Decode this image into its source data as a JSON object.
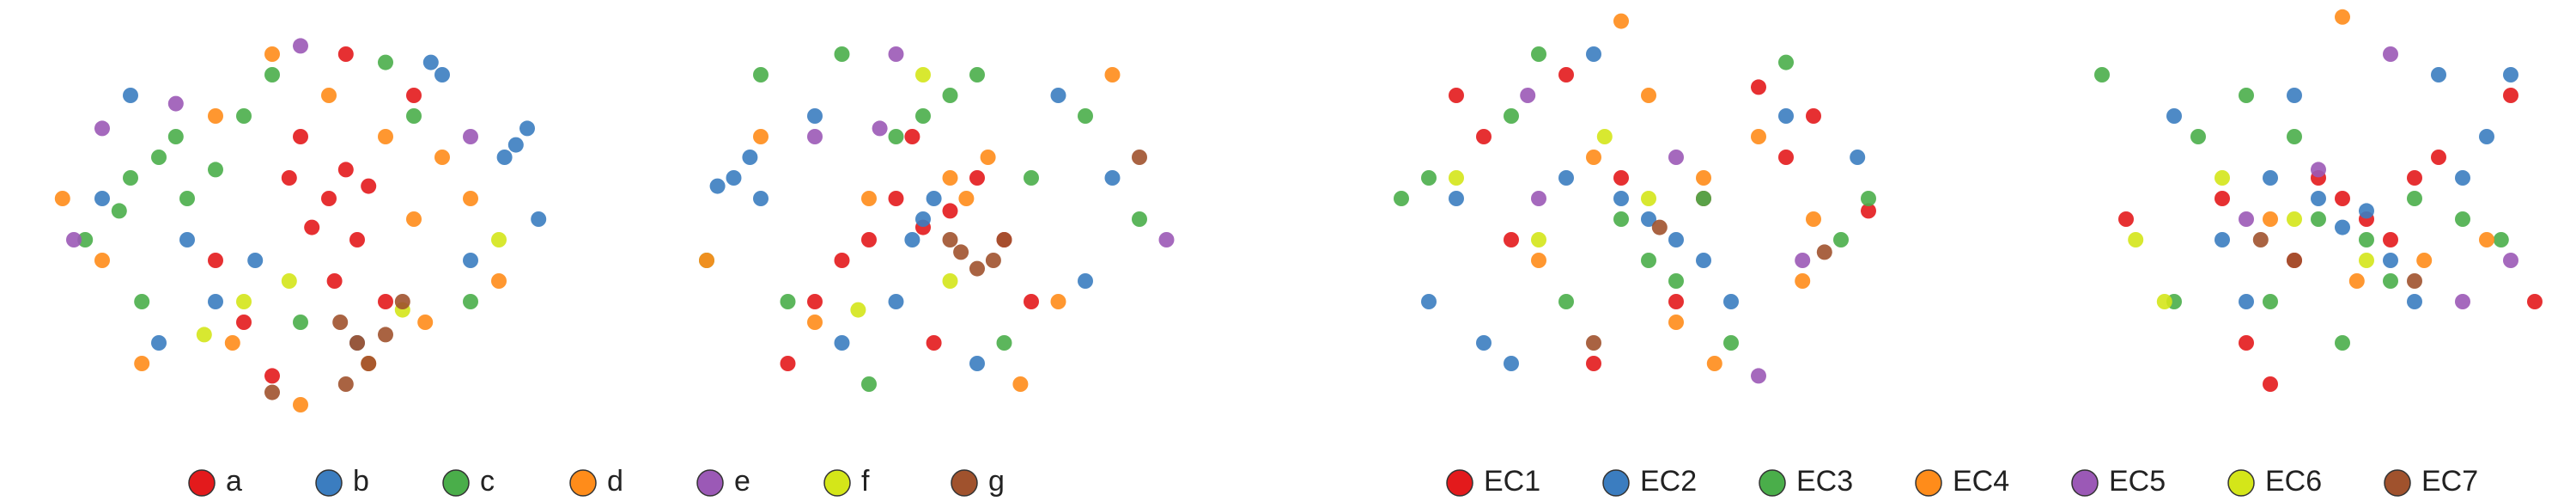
{
  "chart_data": [
    {
      "type": "scatter",
      "xlim": [
        0,
        100
      ],
      "ylim": [
        0,
        100
      ],
      "series": [
        {
          "name": "a",
          "color": "#e31a1c",
          "x": [
            55,
            58,
            52,
            60,
            50,
            56,
            62,
            48,
            65,
            40,
            70,
            35,
            58,
            45
          ],
          "y": [
            55,
            62,
            48,
            45,
            70,
            35,
            58,
            60,
            30,
            25,
            80,
            40,
            90,
            12
          ]
        },
        {
          "name": "b",
          "color": "#3b7dc0",
          "x": [
            88,
            90,
            86,
            75,
            73,
            20,
            30,
            35,
            42,
            60,
            80,
            15,
            25,
            92
          ],
          "y": [
            68,
            72,
            65,
            85,
            88,
            80,
            45,
            30,
            40,
            20,
            40,
            55,
            20,
            50
          ]
        },
        {
          "name": "c",
          "color": "#4aae4a",
          "x": [
            20,
            25,
            30,
            18,
            28,
            35,
            40,
            12,
            45,
            70,
            80,
            22,
            50,
            65
          ],
          "y": [
            60,
            65,
            55,
            52,
            70,
            62,
            75,
            45,
            85,
            75,
            30,
            30,
            25,
            88
          ]
        },
        {
          "name": "d",
          "color": "#ff8c1a",
          "x": [
            8,
            15,
            35,
            45,
            65,
            70,
            75,
            80,
            85,
            38,
            55,
            22,
            62,
            72,
            50
          ],
          "y": [
            55,
            40,
            75,
            90,
            70,
            50,
            65,
            55,
            35,
            20,
            80,
            15,
            15,
            25,
            5
          ]
        },
        {
          "name": "e",
          "color": "#9b59b6",
          "x": [
            10,
            28,
            80,
            50,
            15
          ],
          "y": [
            45,
            78,
            70,
            92,
            72
          ]
        },
        {
          "name": "f",
          "color": "#d4e619",
          "x": [
            40,
            48,
            85,
            68,
            33
          ],
          "y": [
            30,
            35,
            45,
            28,
            22
          ]
        },
        {
          "name": "g",
          "color": "#a0522d",
          "x": [
            60,
            62,
            65,
            57,
            45,
            68,
            58
          ],
          "y": [
            20,
            15,
            22,
            25,
            8,
            30,
            10
          ]
        }
      ]
    },
    {
      "type": "scatter",
      "xlim": [
        0,
        100
      ],
      "ylim": [
        0,
        100
      ],
      "series": [
        {
          "name": "a",
          "color": "#e31a1c",
          "x": [
            45,
            50,
            55,
            40,
            60,
            35,
            65,
            30,
            48,
            52,
            70,
            25
          ],
          "y": [
            55,
            48,
            52,
            45,
            60,
            40,
            45,
            30,
            70,
            20,
            30,
            15
          ]
        },
        {
          "name": "b",
          "color": "#3b7dc0",
          "x": [
            15,
            18,
            20,
            12,
            50,
            52,
            48,
            85,
            80,
            35,
            60,
            45,
            30,
            75
          ],
          "y": [
            60,
            65,
            55,
            58,
            50,
            55,
            45,
            60,
            35,
            20,
            15,
            30,
            75,
            80
          ]
        },
        {
          "name": "c",
          "color": "#4aae4a",
          "x": [
            50,
            55,
            45,
            60,
            20,
            80,
            90,
            35,
            70,
            25,
            65,
            40,
            10
          ],
          "y": [
            75,
            80,
            70,
            85,
            85,
            75,
            50,
            90,
            60,
            30,
            20,
            10,
            40
          ]
        },
        {
          "name": "d",
          "color": "#ff8c1a",
          "x": [
            40,
            55,
            58,
            62,
            10,
            85,
            30,
            75,
            20,
            68
          ],
          "y": [
            55,
            60,
            55,
            65,
            40,
            85,
            25,
            30,
            70,
            10
          ]
        },
        {
          "name": "e",
          "color": "#9b59b6",
          "x": [
            45,
            30,
            95,
            42
          ],
          "y": [
            90,
            70,
            45,
            72
          ]
        },
        {
          "name": "f",
          "color": "#d4e619",
          "x": [
            55,
            50,
            38
          ],
          "y": [
            35,
            85,
            28
          ]
        },
        {
          "name": "g",
          "color": "#a0522d",
          "x": [
            57,
            60,
            63,
            65,
            55,
            90
          ],
          "y": [
            42,
            38,
            40,
            45,
            45,
            65
          ]
        }
      ]
    },
    {
      "type": "scatter",
      "xlim": [
        0,
        100
      ],
      "ylim": [
        0,
        100
      ],
      "series": [
        {
          "name": "EC1",
          "color": "#e31a1c",
          "x": [
            15,
            20,
            45,
            70,
            80,
            90,
            55,
            40,
            25,
            60,
            35,
            75
          ],
          "y": [
            80,
            70,
            60,
            82,
            75,
            52,
            30,
            15,
            45,
            55,
            85,
            65
          ]
        },
        {
          "name": "EC2",
          "color": "#3b7dc0",
          "x": [
            10,
            20,
            25,
            50,
            55,
            45,
            60,
            35,
            65,
            88,
            75,
            15,
            40
          ],
          "y": [
            30,
            20,
            15,
            50,
            45,
            55,
            40,
            60,
            30,
            65,
            75,
            55,
            90
          ]
        },
        {
          "name": "EC3",
          "color": "#4aae4a",
          "x": [
            5,
            10,
            30,
            50,
            55,
            45,
            60,
            85,
            90,
            75,
            35,
            25,
            65
          ],
          "y": [
            55,
            60,
            90,
            40,
            35,
            50,
            55,
            45,
            55,
            88,
            30,
            75,
            20
          ]
        },
        {
          "name": "EC4",
          "color": "#ff8c1a",
          "x": [
            40,
            45,
            60,
            70,
            80,
            55,
            30,
            62,
            78,
            50
          ],
          "y": [
            65,
            98,
            60,
            70,
            50,
            25,
            40,
            15,
            35,
            80
          ]
        },
        {
          "name": "EC5",
          "color": "#9b59b6",
          "x": [
            30,
            70,
            55,
            78,
            28
          ],
          "y": [
            55,
            12,
            65,
            40,
            80
          ]
        },
        {
          "name": "EC6",
          "color": "#d4e619",
          "x": [
            15,
            42,
            50,
            30
          ],
          "y": [
            60,
            70,
            55,
            45
          ]
        },
        {
          "name": "EC7",
          "color": "#a0522d",
          "x": [
            40,
            52,
            82
          ],
          "y": [
            20,
            48,
            42
          ]
        }
      ]
    },
    {
      "type": "scatter",
      "xlim": [
        0,
        100
      ],
      "ylim": [
        0,
        100
      ],
      "series": [
        {
          "name": "EC1",
          "color": "#e31a1c",
          "x": [
            10,
            30,
            35,
            50,
            55,
            60,
            65,
            75,
            90,
            95,
            40,
            70,
            45
          ],
          "y": [
            50,
            55,
            20,
            60,
            55,
            50,
            45,
            65,
            80,
            30,
            10,
            60,
            40
          ]
        },
        {
          "name": "EC2",
          "color": "#3b7dc0",
          "x": [
            20,
            30,
            40,
            50,
            55,
            60,
            65,
            70,
            80,
            85,
            90,
            45,
            75,
            35
          ],
          "y": [
            75,
            45,
            60,
            55,
            48,
            52,
            40,
            30,
            60,
            70,
            85,
            80,
            85,
            30
          ]
        },
        {
          "name": "EC3",
          "color": "#4aae4a",
          "x": [
            5,
            25,
            35,
            45,
            50,
            60,
            65,
            70,
            80,
            88,
            40,
            55,
            20
          ],
          "y": [
            85,
            70,
            80,
            70,
            50,
            45,
            35,
            55,
            50,
            45,
            30,
            20,
            30
          ]
        },
        {
          "name": "EC4",
          "color": "#ff8c1a",
          "x": [
            55,
            40,
            58,
            85,
            72
          ],
          "y": [
            99,
            50,
            35,
            45,
            40
          ]
        },
        {
          "name": "EC5",
          "color": "#9b59b6",
          "x": [
            65,
            80,
            50,
            35,
            90
          ],
          "y": [
            90,
            30,
            62,
            50,
            40
          ]
        },
        {
          "name": "EC6",
          "color": "#d4e619",
          "x": [
            12,
            18,
            45,
            60,
            30
          ],
          "y": [
            45,
            30,
            50,
            40,
            60
          ]
        },
        {
          "name": "EC7",
          "color": "#a0522d",
          "x": [
            45,
            70,
            38
          ],
          "y": [
            40,
            35,
            45
          ]
        }
      ]
    }
  ]
}
